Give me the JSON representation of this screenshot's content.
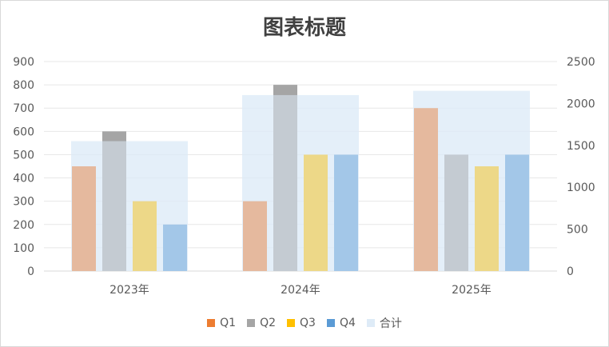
{
  "chart_data": {
    "type": "bar",
    "title": "图表标题",
    "categories": [
      "2023年",
      "2024年",
      "2025年"
    ],
    "series": [
      {
        "name": "Q1",
        "values": [
          450,
          300,
          700
        ],
        "color": "#ED7D31",
        "axis": "left"
      },
      {
        "name": "Q2",
        "values": [
          600,
          800,
          500
        ],
        "color": "#A5A5A5",
        "axis": "left"
      },
      {
        "name": "Q3",
        "values": [
          300,
          500,
          450
        ],
        "color": "#FFC000",
        "axis": "left"
      },
      {
        "name": "Q4",
        "values": [
          200,
          500,
          500
        ],
        "color": "#5B9BD5",
        "axis": "left"
      },
      {
        "name": "合计",
        "values": [
          1550,
          2100,
          2150
        ],
        "color": "#DEEBF7",
        "axis": "right"
      }
    ],
    "ylim_left": [
      0,
      900
    ],
    "yticks_left": [
      "0",
      "100",
      "200",
      "300",
      "400",
      "500",
      "600",
      "700",
      "800",
      "900"
    ],
    "ylim_right": [
      0,
      2500
    ],
    "yticks_right": [
      "0",
      "500",
      "1000",
      "1500",
      "2000",
      "2500"
    ],
    "grid": true,
    "legend": "bottom"
  }
}
